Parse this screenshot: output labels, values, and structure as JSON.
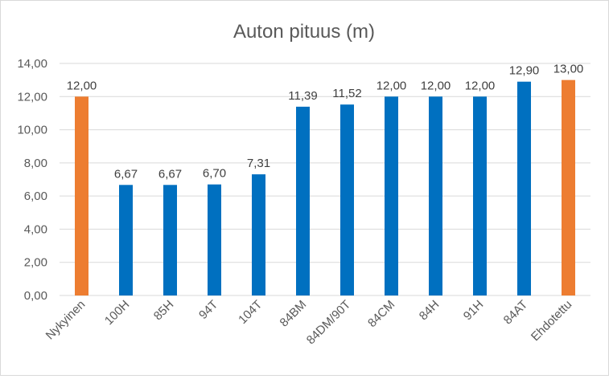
{
  "chart_data": {
    "type": "bar",
    "title": "Auton pituus (m)",
    "xlabel": "",
    "ylabel": "",
    "ylim": [
      0,
      14
    ],
    "yticks": [
      "0,00",
      "2,00",
      "4,00",
      "6,00",
      "8,00",
      "10,00",
      "12,00",
      "14,00"
    ],
    "grid": true,
    "categories": [
      "Nykyinen",
      "100H",
      "85H",
      "94T",
      "104T",
      "84BM",
      "84DM/90T",
      "84CM",
      "84H",
      "91H",
      "84AT",
      "Ehdotettu"
    ],
    "values": [
      12.0,
      6.67,
      6.67,
      6.7,
      7.31,
      11.39,
      11.52,
      12.0,
      12.0,
      12.0,
      12.9,
      13.0
    ],
    "data_labels": [
      "12,00",
      "6,67",
      "6,67",
      "6,70",
      "7,31",
      "11,39",
      "11,52",
      "12,00",
      "12,00",
      "12,00",
      "12,90",
      "13,00"
    ],
    "colors": [
      "#ED7D31",
      "#0070C0",
      "#0070C0",
      "#0070C0",
      "#0070C0",
      "#0070C0",
      "#0070C0",
      "#0070C0",
      "#0070C0",
      "#0070C0",
      "#0070C0",
      "#ED7D31"
    ]
  }
}
